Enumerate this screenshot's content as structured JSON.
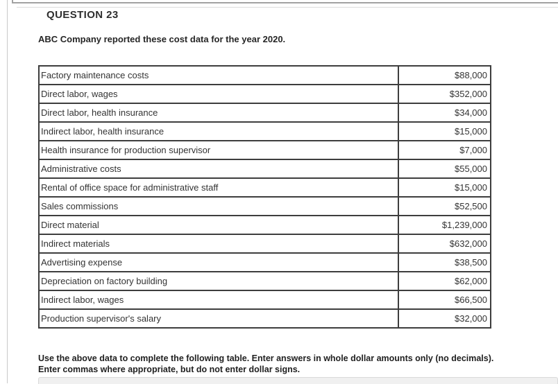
{
  "question": {
    "label": "QUESTION 23",
    "intro": "ABC Company reported these cost data for the year 2020.",
    "instructions_line1": "Use the above data to complete the following table. Enter answers in whole dollar amounts only (no decimals).",
    "instructions_line2": "Enter commas where appropriate, but do not enter dollar signs."
  },
  "cost_table": {
    "rows": [
      {
        "label": "Factory maintenance costs",
        "amount": "$88,000"
      },
      {
        "label": "Direct labor, wages",
        "amount": "$352,000"
      },
      {
        "label": "Direct labor, health insurance",
        "amount": "$34,000"
      },
      {
        "label": "Indirect labor, health insurance",
        "amount": "$15,000"
      },
      {
        "label": "Health insurance for production supervisor",
        "amount": "$7,000"
      },
      {
        "label": "Administrative costs",
        "amount": "$55,000"
      },
      {
        "label": "Rental of office space for administrative staff",
        "amount": "$15,000"
      },
      {
        "label": "Sales commissions",
        "amount": "$52,500"
      },
      {
        "label": "Direct material",
        "amount": "$1,239,000"
      },
      {
        "label": "Indirect materials",
        "amount": "$632,000"
      },
      {
        "label": "Advertising expense",
        "amount": "$38,500"
      },
      {
        "label": "Depreciation on factory building",
        "amount": "$62,000"
      },
      {
        "label": "Indirect labor, wages",
        "amount": "$66,500"
      },
      {
        "label": "Production supervisor's salary",
        "amount": "$32,000"
      }
    ]
  },
  "colors": {
    "table_border": "#3d3d3d",
    "body_text": "#333333",
    "heading_text": "#2e2e2e",
    "bottom_panel_bg": "#f0f0f0",
    "rule_gray": "#c9c9c9"
  }
}
